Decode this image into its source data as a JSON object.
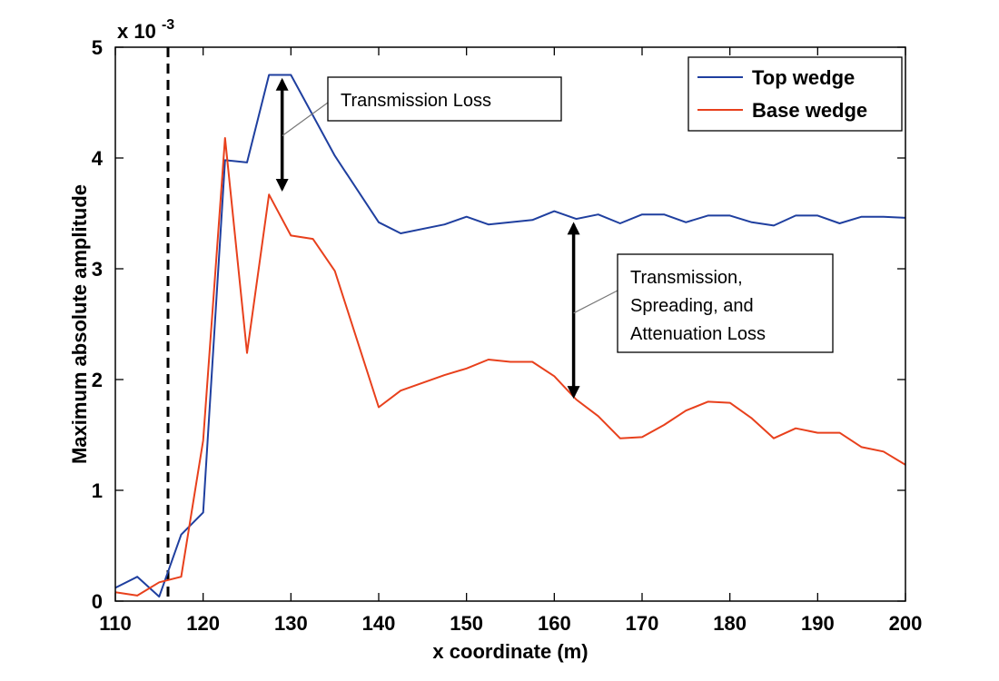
{
  "chart_data": {
    "type": "line",
    "title": "",
    "xlabel": "x coordinate (m)",
    "ylabel": "Maximum absolute amplitude",
    "y_multiplier_text": "x 10",
    "y_multiplier_exponent": "-3",
    "xlim": [
      110,
      200
    ],
    "ylim": [
      0,
      5
    ],
    "x_ticks": [
      110,
      120,
      130,
      140,
      150,
      160,
      170,
      180,
      190,
      200
    ],
    "y_ticks": [
      0,
      1,
      2,
      3,
      4,
      5
    ],
    "grid": false,
    "legend_position": "top-right",
    "vertical_reference_line_x": 116,
    "series": [
      {
        "name": "Top wedge",
        "color": "#1f3f9f",
        "points": [
          [
            110,
            0.12
          ],
          [
            112.5,
            0.22
          ],
          [
            115,
            0.04
          ],
          [
            117.5,
            0.6
          ],
          [
            120,
            0.8
          ],
          [
            122.5,
            3.98
          ],
          [
            125,
            3.96
          ],
          [
            127.5,
            4.75
          ],
          [
            130,
            4.75
          ],
          [
            135,
            4.02
          ],
          [
            140,
            3.42
          ],
          [
            142.5,
            3.32
          ],
          [
            147.5,
            3.4
          ],
          [
            150,
            3.47
          ],
          [
            152.5,
            3.4
          ],
          [
            157.5,
            3.44
          ],
          [
            160,
            3.52
          ],
          [
            162.5,
            3.45
          ],
          [
            165,
            3.49
          ],
          [
            167.5,
            3.41
          ],
          [
            170,
            3.49
          ],
          [
            172.5,
            3.49
          ],
          [
            175,
            3.42
          ],
          [
            177.5,
            3.48
          ],
          [
            180,
            3.48
          ],
          [
            182.5,
            3.42
          ],
          [
            185,
            3.39
          ],
          [
            187.5,
            3.48
          ],
          [
            190,
            3.48
          ],
          [
            192.5,
            3.41
          ],
          [
            195,
            3.47
          ],
          [
            197.5,
            3.47
          ],
          [
            200,
            3.46
          ]
        ]
      },
      {
        "name": "Base wedge",
        "color": "#e8401c",
        "points": [
          [
            110,
            0.08
          ],
          [
            112.5,
            0.05
          ],
          [
            115,
            0.17
          ],
          [
            117.5,
            0.22
          ],
          [
            120,
            1.45
          ],
          [
            122.5,
            4.18
          ],
          [
            125,
            2.24
          ],
          [
            127.5,
            3.67
          ],
          [
            130,
            3.3
          ],
          [
            132.5,
            3.27
          ],
          [
            135,
            2.98
          ],
          [
            140,
            1.75
          ],
          [
            142.5,
            1.9
          ],
          [
            147.5,
            2.04
          ],
          [
            150,
            2.1
          ],
          [
            152.5,
            2.18
          ],
          [
            155,
            2.16
          ],
          [
            157.5,
            2.16
          ],
          [
            160,
            2.03
          ],
          [
            162.5,
            1.82
          ],
          [
            165,
            1.67
          ],
          [
            167.5,
            1.47
          ],
          [
            170,
            1.48
          ],
          [
            172.5,
            1.59
          ],
          [
            175,
            1.72
          ],
          [
            177.5,
            1.8
          ],
          [
            180,
            1.79
          ],
          [
            182.5,
            1.65
          ],
          [
            185,
            1.47
          ],
          [
            187.5,
            1.56
          ],
          [
            190,
            1.52
          ],
          [
            192.5,
            1.52
          ],
          [
            195,
            1.39
          ],
          [
            197.5,
            1.35
          ],
          [
            200,
            1.23
          ]
        ]
      }
    ],
    "annotations": [
      {
        "lines": [
          "Transmission Loss"
        ],
        "arrow_x": 129,
        "arrow_y_from": 3.72,
        "arrow_y_to": 4.7,
        "leader_from": [
          129,
          4.2
        ],
        "leader_to": [
          133,
          4.42
        ]
      },
      {
        "lines": [
          "Transmission,",
          "Spreading, and",
          "Attenuation Loss"
        ],
        "arrow_x": 162.2,
        "arrow_y_from": 1.85,
        "arrow_y_to": 3.4,
        "leader_from": [
          162.2,
          2.6
        ],
        "leader_to": [
          166,
          3.0
        ]
      }
    ]
  }
}
